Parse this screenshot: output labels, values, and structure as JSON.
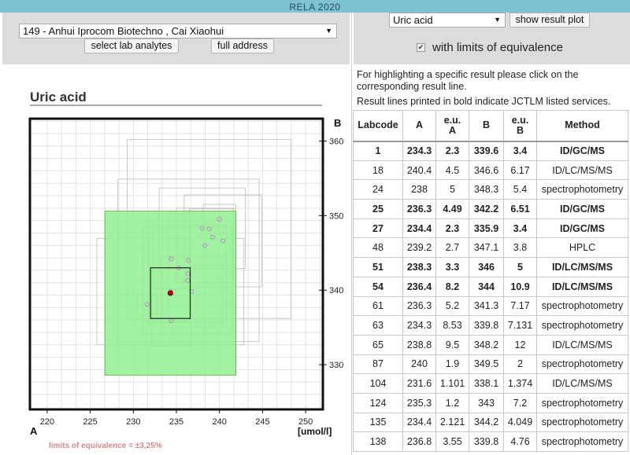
{
  "window": {
    "title": "RELA 2020"
  },
  "left_controls": {
    "lab_select": "149 - Anhui Iprocom Biotechno , Cai Xiaohui",
    "select_analytes_label": "select lab analytes",
    "full_address_label": "full address"
  },
  "right_controls": {
    "analyte_select": "Uric acid",
    "show_plot_label": "show result plot",
    "limits_label": "with limits of equivalence",
    "limits_checked": true
  },
  "info": {
    "line1": "For highlighting a specific result please click on the",
    "line2": "corresponding result line.",
    "line3": "Result lines printed in bold indicate JCTLM listed services."
  },
  "chart": {
    "title": "Uric acid",
    "axis_a_label": "A",
    "axis_b_label": "B",
    "unit_label": "[umol/l]",
    "limits_text": "limits of equivalence = ±3,25%",
    "highlight_color": "#8fef8f",
    "highlight_border": "#6bbf3e",
    "marker_color": "#cc0000"
  },
  "chart_data": {
    "type": "scatter",
    "x_ticks": [
      "220",
      "225",
      "230",
      "235",
      "240",
      "245",
      "250"
    ],
    "y_ticks": [
      "330",
      "340",
      "350",
      "360"
    ],
    "xlim": [
      218,
      252
    ],
    "ylim": [
      324,
      363
    ],
    "grid": true,
    "selected_point": {
      "a": 234.3,
      "b": 339.6
    },
    "equivalence_box": {
      "a_min": 226.7,
      "a_max": 241.9,
      "b_min": 328.6,
      "b_max": 350.6
    },
    "points": [
      {
        "a": 234.3,
        "b": 339.6
      },
      {
        "a": 240.4,
        "b": 346.6
      },
      {
        "a": 238,
        "b": 348.3
      },
      {
        "a": 236.3,
        "b": 342.2
      },
      {
        "a": 234.4,
        "b": 335.9
      },
      {
        "a": 239.2,
        "b": 347.1
      },
      {
        "a": 238.3,
        "b": 346
      },
      {
        "a": 236.4,
        "b": 344
      },
      {
        "a": 236.3,
        "b": 341.3
      },
      {
        "a": 234.3,
        "b": 339.8
      },
      {
        "a": 238.8,
        "b": 348.2
      },
      {
        "a": 240,
        "b": 349.5
      },
      {
        "a": 231.6,
        "b": 338.1
      },
      {
        "a": 235.3,
        "b": 343
      },
      {
        "a": 234.4,
        "b": 344.2
      },
      {
        "a": 236.8,
        "b": 339.8
      }
    ],
    "error_boxes": [
      {
        "a": 240.4,
        "ua": 4.5,
        "b": 346.6,
        "ub": 6.17
      },
      {
        "a": 238,
        "ua": 5,
        "b": 348.3,
        "ub": 5.4
      },
      {
        "a": 236.3,
        "ua": 4.49,
        "b": 342.2,
        "ub": 6.51
      },
      {
        "a": 234.4,
        "ua": 2.3,
        "b": 335.9,
        "ub": 3.4
      },
      {
        "a": 239.2,
        "ua": 2.7,
        "b": 347.1,
        "ub": 3.8
      },
      {
        "a": 238.3,
        "ua": 3.3,
        "b": 346,
        "ub": 5
      },
      {
        "a": 236.4,
        "ua": 8.2,
        "b": 344,
        "ub": 10.9
      },
      {
        "a": 236.3,
        "ua": 5.2,
        "b": 341.3,
        "ub": 7.17
      },
      {
        "a": 234.3,
        "ua": 8.53,
        "b": 339.8,
        "ub": 7.131
      },
      {
        "a": 238.8,
        "ua": 9.5,
        "b": 348.2,
        "ub": 12
      },
      {
        "a": 240,
        "ua": 1.9,
        "b": 349.5,
        "ub": 2
      },
      {
        "a": 231.6,
        "ua": 1.101,
        "b": 338.1,
        "ub": 1.374
      },
      {
        "a": 235.3,
        "ua": 1.2,
        "b": 343,
        "ub": 7.2
      },
      {
        "a": 234.4,
        "ua": 2.121,
        "b": 344.2,
        "ub": 4.049
      },
      {
        "a": 236.8,
        "ua": 3.55,
        "b": 339.8,
        "ub": 4.76
      }
    ],
    "selected_box": {
      "a": 234.3,
      "ua": 2.3,
      "b": 339.6,
      "ub": 3.4
    }
  },
  "table": {
    "headers": [
      "Labcode",
      "A",
      "e.u. A",
      "B",
      "e.u. B",
      "Method"
    ],
    "rows": [
      {
        "labcode": "1",
        "a": "234.3",
        "eua": "2.3",
        "b": "339.6",
        "eub": "3.4",
        "method": "ID/GC/MS",
        "bold": true
      },
      {
        "labcode": "18",
        "a": "240.4",
        "eua": "4.5",
        "b": "346.6",
        "eub": "6.17",
        "method": "ID/LC/MS/MS",
        "bold": false
      },
      {
        "labcode": "24",
        "a": "238",
        "eua": "5",
        "b": "348.3",
        "eub": "5.4",
        "method": "spectrophotometry",
        "bold": false
      },
      {
        "labcode": "25",
        "a": "236.3",
        "eua": "4.49",
        "b": "342.2",
        "eub": "6.51",
        "method": "ID/GC/MS",
        "bold": true
      },
      {
        "labcode": "27",
        "a": "234.4",
        "eua": "2.3",
        "b": "335.9",
        "eub": "3.4",
        "method": "ID/GC/MS",
        "bold": true
      },
      {
        "labcode": "48",
        "a": "239.2",
        "eua": "2.7",
        "b": "347.1",
        "eub": "3.8",
        "method": "HPLC",
        "bold": false
      },
      {
        "labcode": "51",
        "a": "238.3",
        "eua": "3.3",
        "b": "346",
        "eub": "5",
        "method": "ID/LC/MS/MS",
        "bold": true
      },
      {
        "labcode": "54",
        "a": "236.4",
        "eua": "8.2",
        "b": "344",
        "eub": "10.9",
        "method": "ID/LC/MS/MS",
        "bold": true
      },
      {
        "labcode": "61",
        "a": "236.3",
        "eua": "5.2",
        "b": "341.3",
        "eub": "7.17",
        "method": "spectrophotometry",
        "bold": false
      },
      {
        "labcode": "63",
        "a": "234.3",
        "eua": "8.53",
        "b": "339.8",
        "eub": "7.131",
        "method": "spectrophotometry",
        "bold": false
      },
      {
        "labcode": "65",
        "a": "238.8",
        "eua": "9.5",
        "b": "348.2",
        "eub": "12",
        "method": "ID/LC/MS/MS",
        "bold": false
      },
      {
        "labcode": "87",
        "a": "240",
        "eua": "1.9",
        "b": "349.5",
        "eub": "2",
        "method": "spectrophotometry",
        "bold": false
      },
      {
        "labcode": "104",
        "a": "231.6",
        "eua": "1.101",
        "b": "338.1",
        "eub": "1.374",
        "method": "ID/LC/MS/MS",
        "bold": false
      },
      {
        "labcode": "124",
        "a": "235.3",
        "eua": "1.2",
        "b": "343",
        "eub": "7.2",
        "method": "spectrophotometry",
        "bold": false
      },
      {
        "labcode": "135",
        "a": "234.4",
        "eua": "2.121",
        "b": "344.2",
        "eub": "4.049",
        "method": "spectrophotometry",
        "bold": false
      },
      {
        "labcode": "138",
        "a": "236.8",
        "eua": "3.55",
        "b": "339.8",
        "eub": "4.76",
        "method": "spectrophotometry",
        "bold": false
      }
    ]
  }
}
